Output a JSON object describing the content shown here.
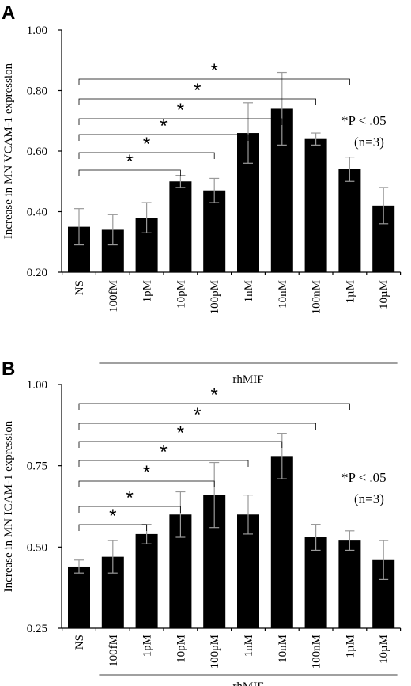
{
  "chart_data": [
    {
      "type": "bar",
      "panel_label": "A",
      "ylabel": "Increase in MN VCAM-1 expression",
      "ylim": [
        0.2,
        1.0
      ],
      "yticks": [
        "0.20",
        "0.40",
        "0.60",
        "0.80",
        "1.00"
      ],
      "categories": [
        "NS",
        "100fM",
        "1pM",
        "10pM",
        "100pM",
        "1nM",
        "10nM",
        "100nM",
        "1µM",
        "10µM"
      ],
      "values": [
        0.35,
        0.34,
        0.38,
        0.5,
        0.47,
        0.66,
        0.74,
        0.64,
        0.54,
        0.42
      ],
      "errors": [
        0.06,
        0.05,
        0.05,
        0.02,
        0.04,
        0.1,
        0.12,
        0.02,
        0.04,
        0.06
      ],
      "group_label": "rhMIF",
      "significance": [
        {
          "from": "NS",
          "to": "10pM",
          "symbol": "*"
        },
        {
          "from": "NS",
          "to": "100pM",
          "symbol": "*"
        },
        {
          "from": "NS",
          "to": "1nM",
          "symbol": "*"
        },
        {
          "from": "NS",
          "to": "10nM",
          "symbol": "*"
        },
        {
          "from": "NS",
          "to": "100nM",
          "symbol": "*"
        },
        {
          "from": "NS",
          "to": "1µM",
          "symbol": "*"
        }
      ],
      "note_p": "*P < .05",
      "note_n": "(n=3)"
    },
    {
      "type": "bar",
      "panel_label": "B",
      "ylabel": "Increase in MN ICAM-1 expression",
      "ylim": [
        0.25,
        1.0
      ],
      "yticks": [
        "0.25",
        "0.50",
        "0.75",
        "1.00"
      ],
      "categories": [
        "NS",
        "100fM",
        "1pM",
        "10pM",
        "100pM",
        "1nM",
        "10nM",
        "100nM",
        "1µM",
        "10µM"
      ],
      "values": [
        0.44,
        0.47,
        0.54,
        0.6,
        0.66,
        0.6,
        0.78,
        0.53,
        0.52,
        0.46
      ],
      "errors": [
        0.02,
        0.05,
        0.03,
        0.07,
        0.1,
        0.06,
        0.07,
        0.04,
        0.03,
        0.06
      ],
      "group_label": "rhMIF",
      "significance": [
        {
          "from": "NS",
          "to": "1pM",
          "symbol": "*"
        },
        {
          "from": "NS",
          "to": "10pM",
          "symbol": "*"
        },
        {
          "from": "NS",
          "to": "100pM",
          "symbol": "*"
        },
        {
          "from": "NS",
          "to": "1nM",
          "symbol": "*"
        },
        {
          "from": "NS",
          "to": "10nM",
          "symbol": "*"
        },
        {
          "from": "NS",
          "to": "100nM",
          "symbol": "*"
        },
        {
          "from": "NS",
          "to": "1µM",
          "symbol": "*"
        }
      ],
      "note_p": "*P < .05",
      "note_n": "(n=3)"
    }
  ]
}
